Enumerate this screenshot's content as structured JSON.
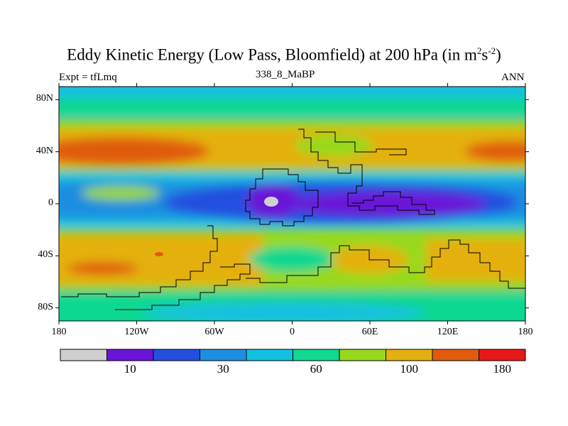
{
  "chart_data": {
    "type": "heatmap",
    "title_prefix": "Eddy Kinetic Energy (Low Pass, Bloomfield) at 200 hPa (in m",
    "title_sup1": "2",
    "title_mid": "s",
    "title_sup2": "-2",
    "title_suffix": ")",
    "left_label": "Expt = tfLmq",
    "center_label": "338_8_MaBP",
    "right_label": "ANN",
    "x_ticks": [
      "180",
      "120W",
      "60W",
      "0",
      "60E",
      "120E",
      "180"
    ],
    "y_ticks": [
      "80N",
      "40N",
      "0",
      "40S",
      "80S"
    ],
    "xlim": [
      -180,
      180
    ],
    "ylim": [
      -90,
      90
    ],
    "colorbar": {
      "colors": [
        "#d0d0d0",
        "#6a14d8",
        "#2450e0",
        "#1e8ee0",
        "#12c0e0",
        "#10d890",
        "#98d81c",
        "#e4b010",
        "#e05c0c",
        "#e81818"
      ],
      "labels": [
        "10",
        "30",
        "60",
        "100",
        "180"
      ],
      "label_after_box": [
        1,
        3,
        5,
        7,
        9
      ]
    }
  }
}
